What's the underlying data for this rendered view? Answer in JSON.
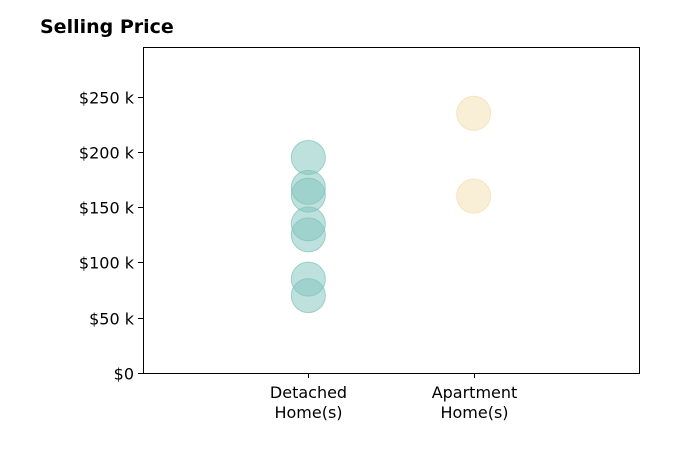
{
  "chart_data": {
    "type": "scatter",
    "title": "Selling Price",
    "xlabel": "",
    "ylabel": "",
    "categories": [
      [
        "Detached",
        "Home(s)"
      ],
      [
        "Apartment",
        "Home(s)"
      ]
    ],
    "x_range": [
      -1,
      2
    ],
    "ylim": [
      0,
      295000
    ],
    "yticks": [
      0,
      50000,
      100000,
      150000,
      200000,
      250000
    ],
    "ytick_labels": [
      "$0",
      "$50 k",
      "$100 k",
      "$150 k",
      "$200 k",
      "$250 k"
    ],
    "grid": false,
    "legend": "none",
    "series": [
      {
        "category_index": 0,
        "color": "#7fc4bb",
        "values": [
          195000,
          168000,
          161000,
          135000,
          125000,
          85000,
          70000
        ]
      },
      {
        "category_index": 1,
        "color": "#f3dfb0",
        "values": [
          235000,
          160000
        ]
      }
    ]
  }
}
